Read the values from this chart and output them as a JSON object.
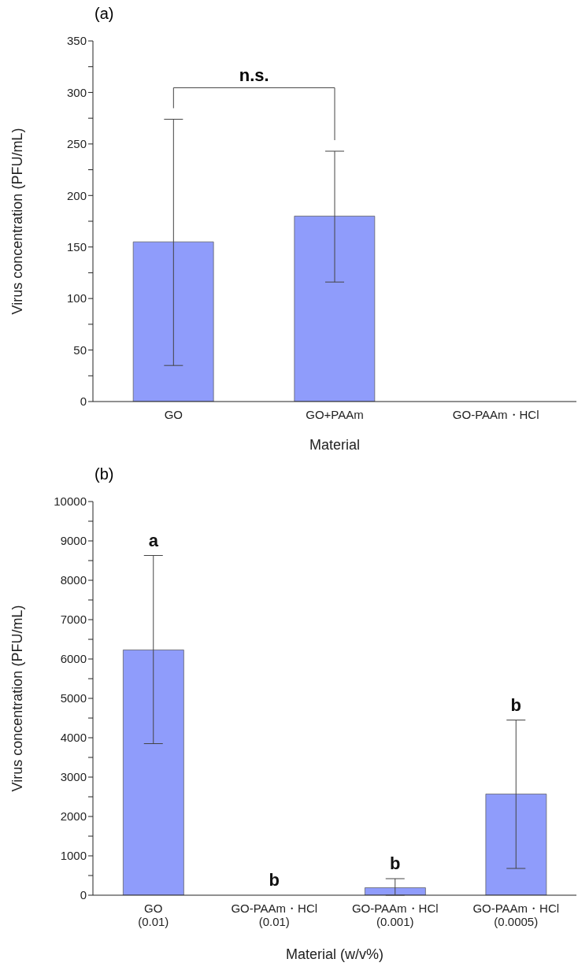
{
  "chart_data": [
    {
      "type": "bar",
      "title": "(a)",
      "xlabel": "Material",
      "ylabel": "Virus concentration (PFU/mL)",
      "categories": [
        "GO",
        "GO+PAAm",
        "GO-PAAm・HCl"
      ],
      "color": "#8f9cfb",
      "values": [
        155,
        180,
        0
      ],
      "errors": [
        [
          35,
          274
        ],
        [
          116,
          243
        ],
        null
      ],
      "ylim": [
        0,
        350
      ],
      "yticks": [
        0,
        {
          "value": 25,
          "label": null
        },
        50,
        {
          "value": 75,
          "label": null
        },
        100,
        {
          "value": 125,
          "label": null
        },
        150,
        {
          "value": 175,
          "label": null
        },
        200,
        {
          "value": 225,
          "label": null
        },
        250,
        {
          "value": 275,
          "label": null
        },
        300,
        {
          "value": 325,
          "label": null
        },
        350
      ],
      "annotations": [
        "n.s."
      ]
    },
    {
      "type": "bar",
      "title": "(b)",
      "xlabel": "Material (w/v%)",
      "ylabel": "Virus concentration (PFU/mL)",
      "categories": [
        "GO\n(0.01)",
        "GO-PAAm・HCl\n(0.01)",
        "GO-PAAm・HCl\n(0.001)",
        "GO-PAAm・HCl\n(0.0005)"
      ],
      "color": "#8f9cfb",
      "values": [
        6230,
        0,
        190,
        2570
      ],
      "errors": [
        [
          3850,
          8630
        ],
        null,
        [
          0,
          420
        ],
        [
          680,
          4450
        ]
      ],
      "ylim": [
        0,
        10000
      ],
      "yticks": [
        0,
        {
          "value": 500,
          "label": null
        },
        1000,
        {
          "value": 1500,
          "label": null
        },
        2000,
        {
          "value": 2500,
          "label": null
        },
        3000,
        {
          "value": 3500,
          "label": null
        },
        4000,
        {
          "value": 4500,
          "label": null
        },
        5000,
        {
          "value": 5500,
          "label": null
        },
        6000,
        {
          "value": 6500,
          "label": null
        },
        7000,
        {
          "value": 7500,
          "label": null
        },
        8000,
        {
          "value": 8500,
          "label": null
        },
        9000,
        {
          "value": 9500,
          "label": null
        },
        10000
      ],
      "annotations": [
        {
          "text": "a",
          "x": "GO\n(0.01)",
          "y": 8630
        },
        {
          "text": "b",
          "x": "GO-PAAm・HCl\n(0.01)",
          "y": 0
        },
        {
          "text": "b",
          "x": "GO-PAAm・HCl\n(0.001)",
          "y": 420
        },
        {
          "text": "b",
          "x": "GO-PAAm・HCl\n(0.0005)",
          "y": 4450
        }
      ]
    }
  ]
}
